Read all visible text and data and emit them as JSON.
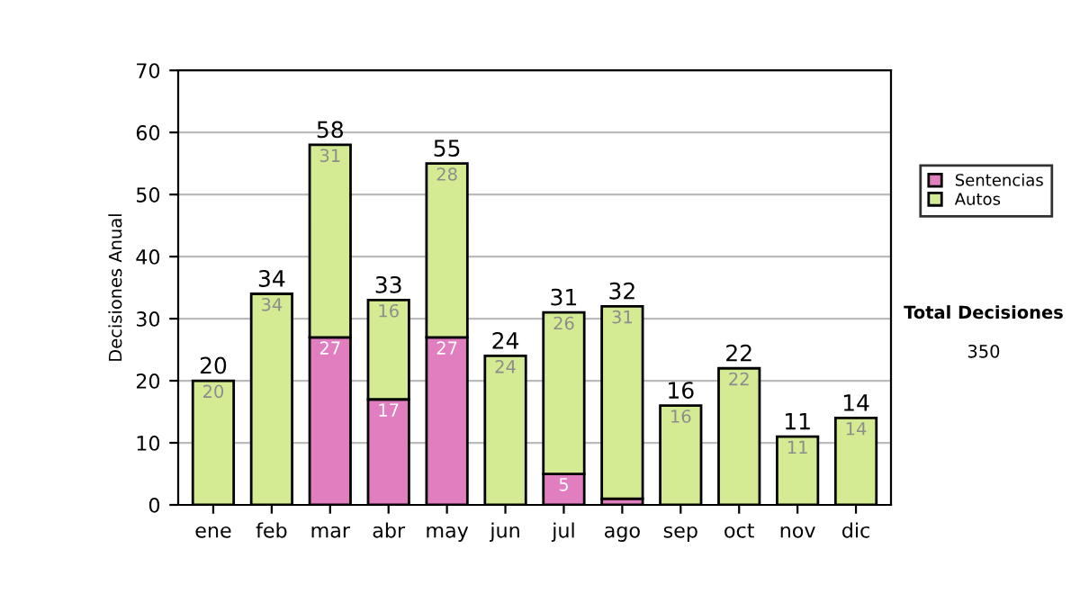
{
  "chart_data": {
    "type": "bar",
    "stacked": true,
    "ylabel": "Decisiones Anual",
    "categories": [
      "ene",
      "feb",
      "mar",
      "abr",
      "may",
      "jun",
      "jul",
      "ago",
      "sep",
      "oct",
      "nov",
      "dic"
    ],
    "series": [
      {
        "name": "Sentencias",
        "color": "#e07ec0",
        "values": [
          0,
          0,
          27,
          17,
          27,
          0,
          5,
          1,
          0,
          0,
          0,
          0
        ],
        "value_labels": [
          null,
          null,
          "27",
          "17",
          "27",
          null,
          "5",
          null,
          null,
          null,
          null,
          null
        ]
      },
      {
        "name": "Autos",
        "color": "#d4eb94",
        "values": [
          20,
          34,
          31,
          16,
          28,
          24,
          26,
          31,
          16,
          22,
          11,
          14
        ],
        "value_labels": [
          "20",
          "34",
          "31",
          "16",
          "28",
          "24",
          "26",
          "31",
          "16",
          "22",
          "11",
          "14"
        ]
      }
    ],
    "totals": [
      "20",
      "34",
      "58",
      "33",
      "55",
      "24",
      "31",
      "32",
      "16",
      "22",
      "11",
      "14"
    ],
    "ylim": [
      0,
      70
    ],
    "yticks": [
      0,
      10,
      20,
      30,
      40,
      50,
      60,
      70
    ],
    "grid": "y",
    "legend": "right",
    "annotations": [
      "Total Decisiones",
      "350"
    ]
  }
}
